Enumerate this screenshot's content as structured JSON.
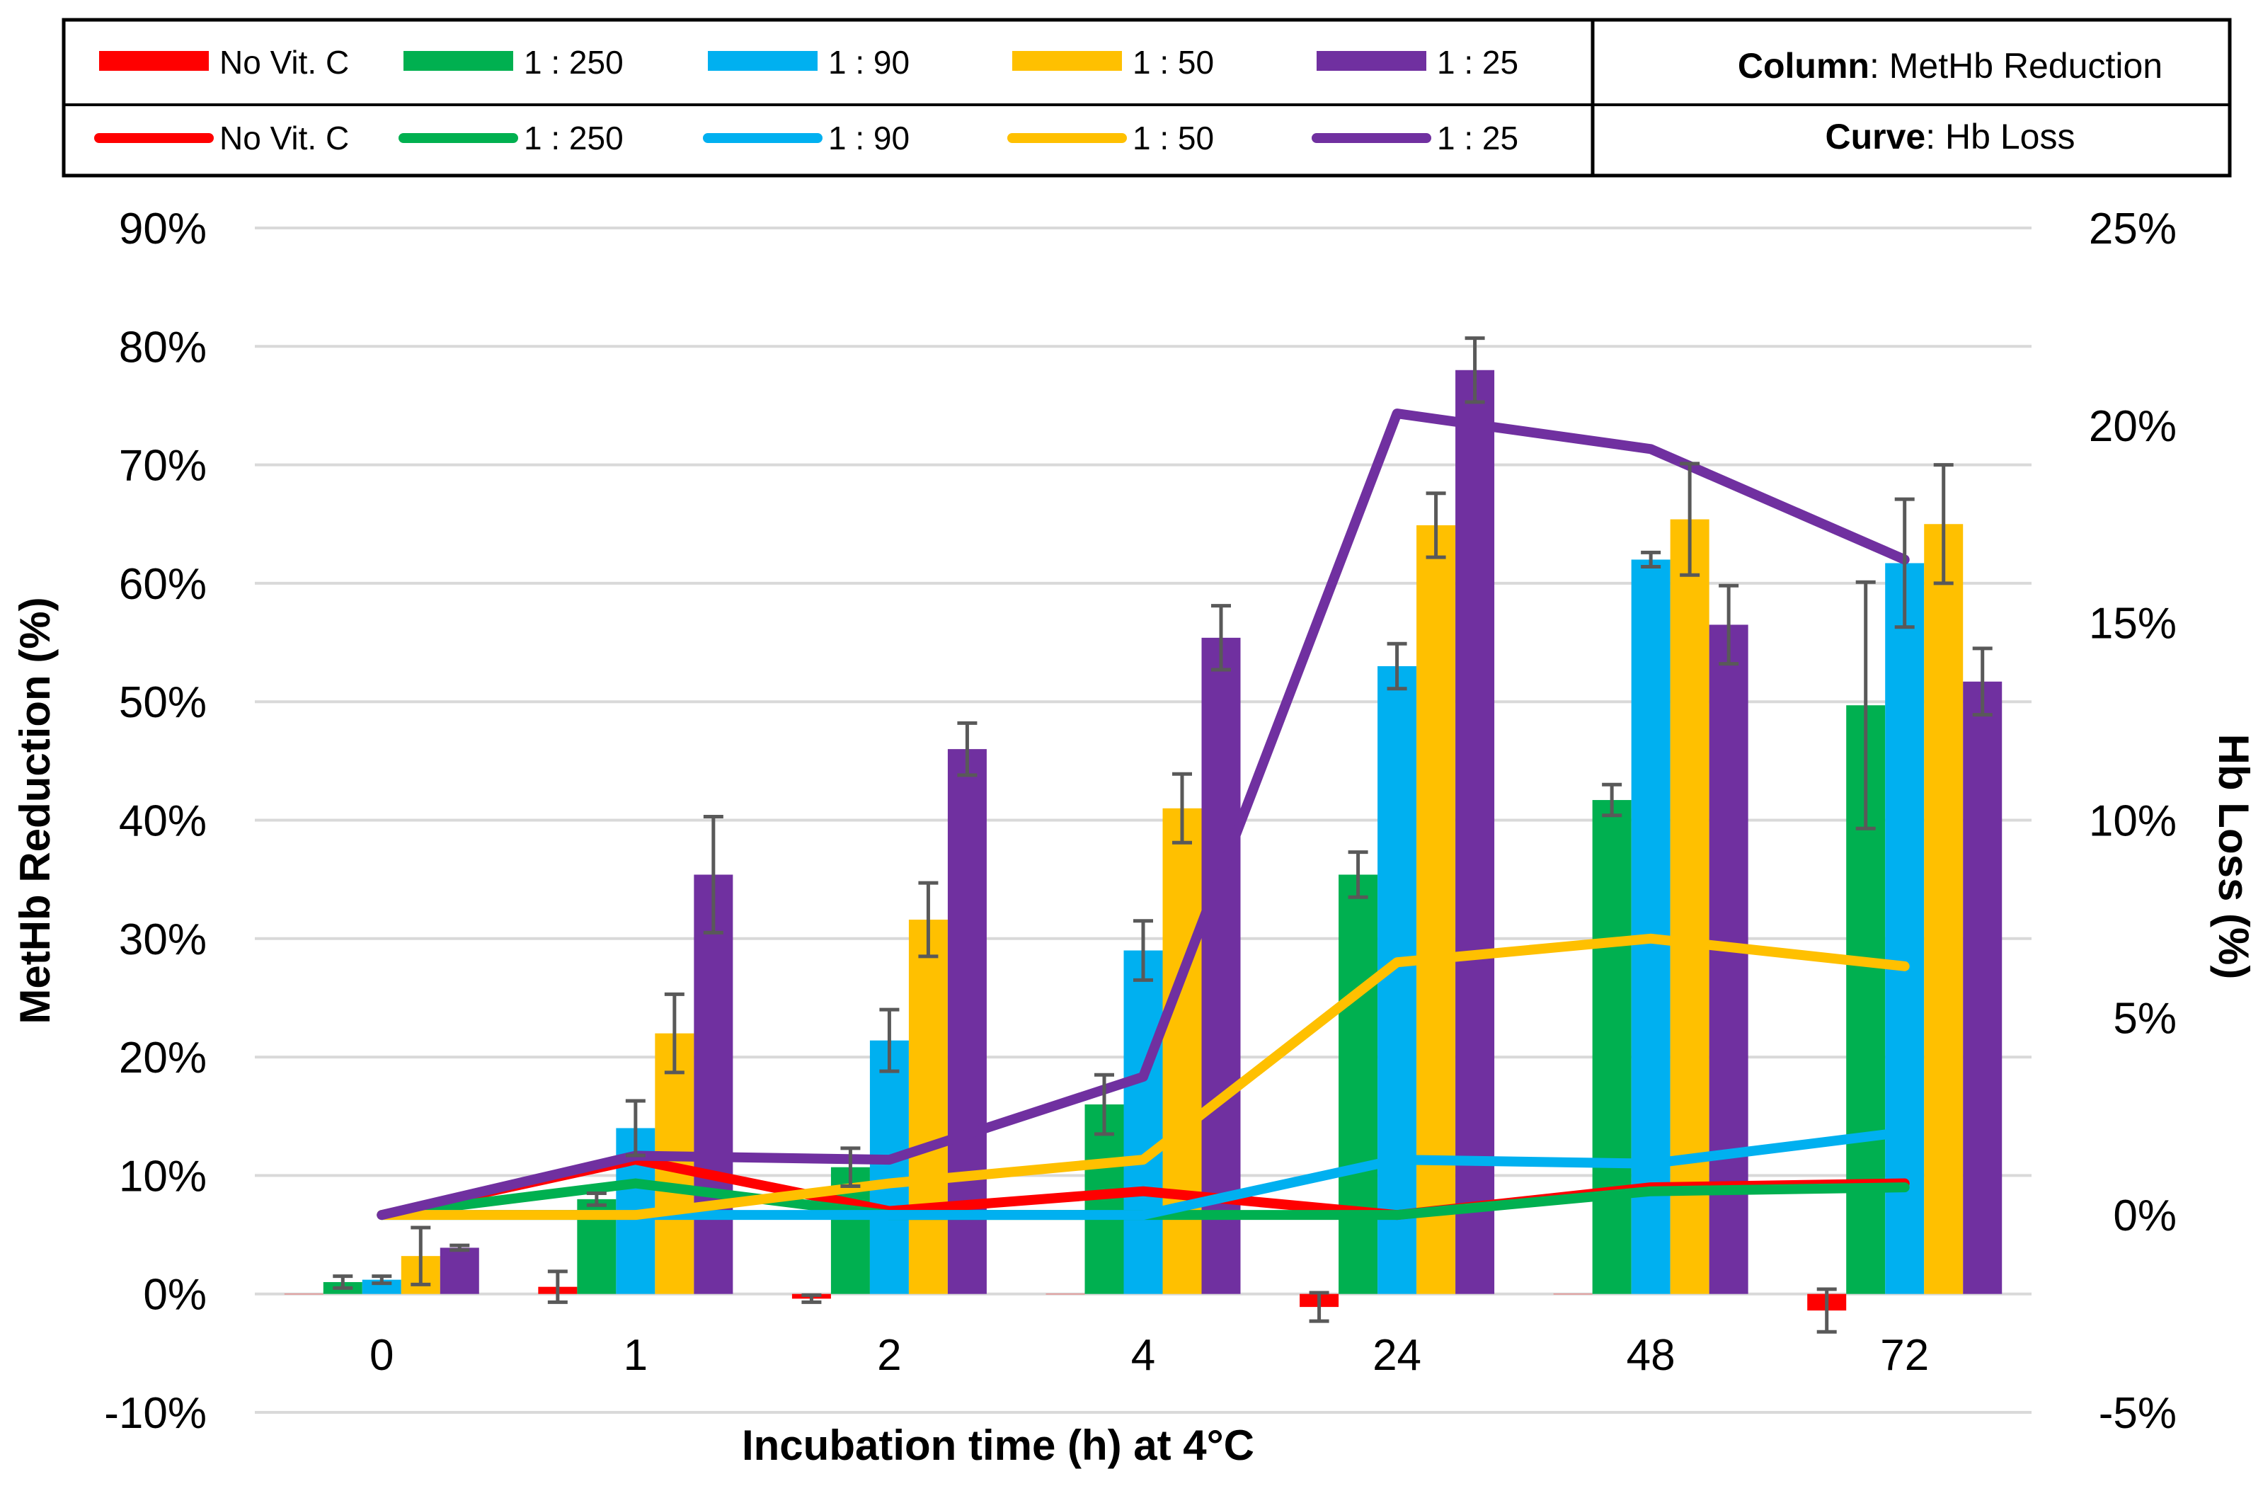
{
  "chart_data": {
    "type": "bar+line",
    "xlabel": "Incubation time (h) at 4°C",
    "ylabel_left": "MetHb Reduction (%)",
    "ylabel_right": "Hb Loss (%)",
    "categories": [
      "0",
      "1",
      "2",
      "4",
      "24",
      "48",
      "72"
    ],
    "left_axis": {
      "min": -10,
      "max": 90,
      "step": 10,
      "tick_labels": [
        "-10%",
        "0%",
        "10%",
        "20%",
        "30%",
        "40%",
        "50%",
        "60%",
        "70%",
        "80%",
        "90%"
      ]
    },
    "right_axis": {
      "min": -5,
      "max": 25,
      "step": 5,
      "tick_labels": [
        "-5%",
        "0%",
        "5%",
        "10%",
        "15%",
        "20%",
        "25%"
      ]
    },
    "legend": {
      "column_key": "Column",
      "column_value": "MetHb Reduction",
      "curve_key": "Curve",
      "curve_value": "Hb Loss"
    },
    "series": [
      {
        "name": "No Vit. C",
        "color": "#ff0000",
        "bar_values": [
          0,
          0.6,
          -0.4,
          0,
          -1.1,
          0,
          -1.4
        ],
        "bar_errors": [
          0,
          1.3,
          0.3,
          0,
          1.2,
          0,
          1.8
        ],
        "line_values": [
          0,
          1.4,
          0.1,
          0.6,
          0,
          0.7,
          0.8
        ],
        "line_errors": [
          0,
          0,
          0,
          0,
          0,
          0,
          0
        ]
      },
      {
        "name": "1 : 250",
        "color": "#00b050",
        "bar_values": [
          1,
          8,
          10.7,
          16,
          35.4,
          41.7,
          49.7
        ],
        "bar_errors": [
          0.5,
          0.5,
          1.6,
          2.5,
          1.9,
          1.3,
          10.4
        ],
        "line_values": [
          0,
          0.8,
          0,
          0,
          0,
          0.6,
          0.7
        ],
        "line_errors": [
          0,
          0,
          0,
          0,
          0,
          0,
          0
        ]
      },
      {
        "name": "1 : 90",
        "color": "#00b0f0",
        "bar_values": [
          1.2,
          14,
          21.4,
          29,
          53,
          62,
          61.7
        ],
        "bar_errors": [
          0.3,
          2.3,
          2.6,
          2.5,
          1.9,
          0.6,
          5.4
        ],
        "line_values": [
          0,
          0,
          0,
          0,
          1.4,
          1.3,
          2.1
        ],
        "line_errors": [
          0,
          0,
          0,
          0,
          0,
          0,
          0
        ]
      },
      {
        "name": "1 : 50",
        "color": "#ffc000",
        "bar_values": [
          3.2,
          22,
          31.6,
          41,
          64.9,
          65.4,
          65
        ],
        "bar_errors": [
          2.4,
          3.3,
          3.1,
          2.9,
          2.7,
          4.7,
          5
        ],
        "line_values": [
          0,
          0,
          0.8,
          1.4,
          6.4,
          7,
          6.3
        ],
        "line_errors": [
          0,
          0,
          0,
          0,
          0,
          0,
          0
        ]
      },
      {
        "name": "1 : 25",
        "color": "#7030a0",
        "bar_values": [
          3.9,
          35.4,
          46,
          55.4,
          78,
          56.5,
          51.7
        ],
        "bar_errors": [
          0.2,
          4.9,
          2.2,
          2.7,
          2.7,
          3.3,
          2.8
        ],
        "line_values": [
          0,
          1.5,
          1.4,
          3.5,
          20.3,
          19.4,
          16.6
        ],
        "line_errors": [
          0,
          0,
          0,
          0,
          0,
          0,
          0
        ]
      }
    ]
  }
}
